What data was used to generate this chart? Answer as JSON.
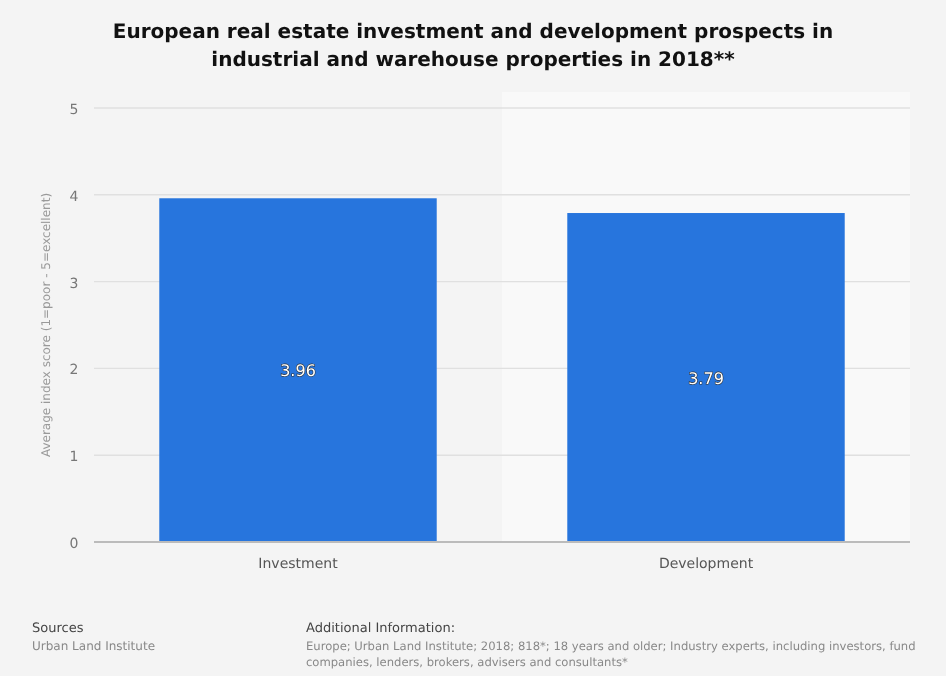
{
  "chart_data": {
    "type": "bar",
    "title": "European real estate investment and development prospects in industrial and warehouse properties in 2018**",
    "ylabel": "Average index score (1=poor - 5=excellent)",
    "categories": [
      "Investment",
      "Development"
    ],
    "values": [
      3.96,
      3.79
    ],
    "color": "#2775dd",
    "ylim": [
      0,
      5
    ],
    "yticks": [
      0,
      1,
      2,
      3,
      4,
      5
    ],
    "grid": "y",
    "data_labels": true,
    "annotations": [
      "Sources",
      "Urban Land Institute",
      "Additional Information:",
      "Europe; Urban Land Institute; 2018; 818*; 18 years and older; Industry experts, including investors, fund",
      "companies, lenders, brokers, advisers and consultants*"
    ]
  }
}
